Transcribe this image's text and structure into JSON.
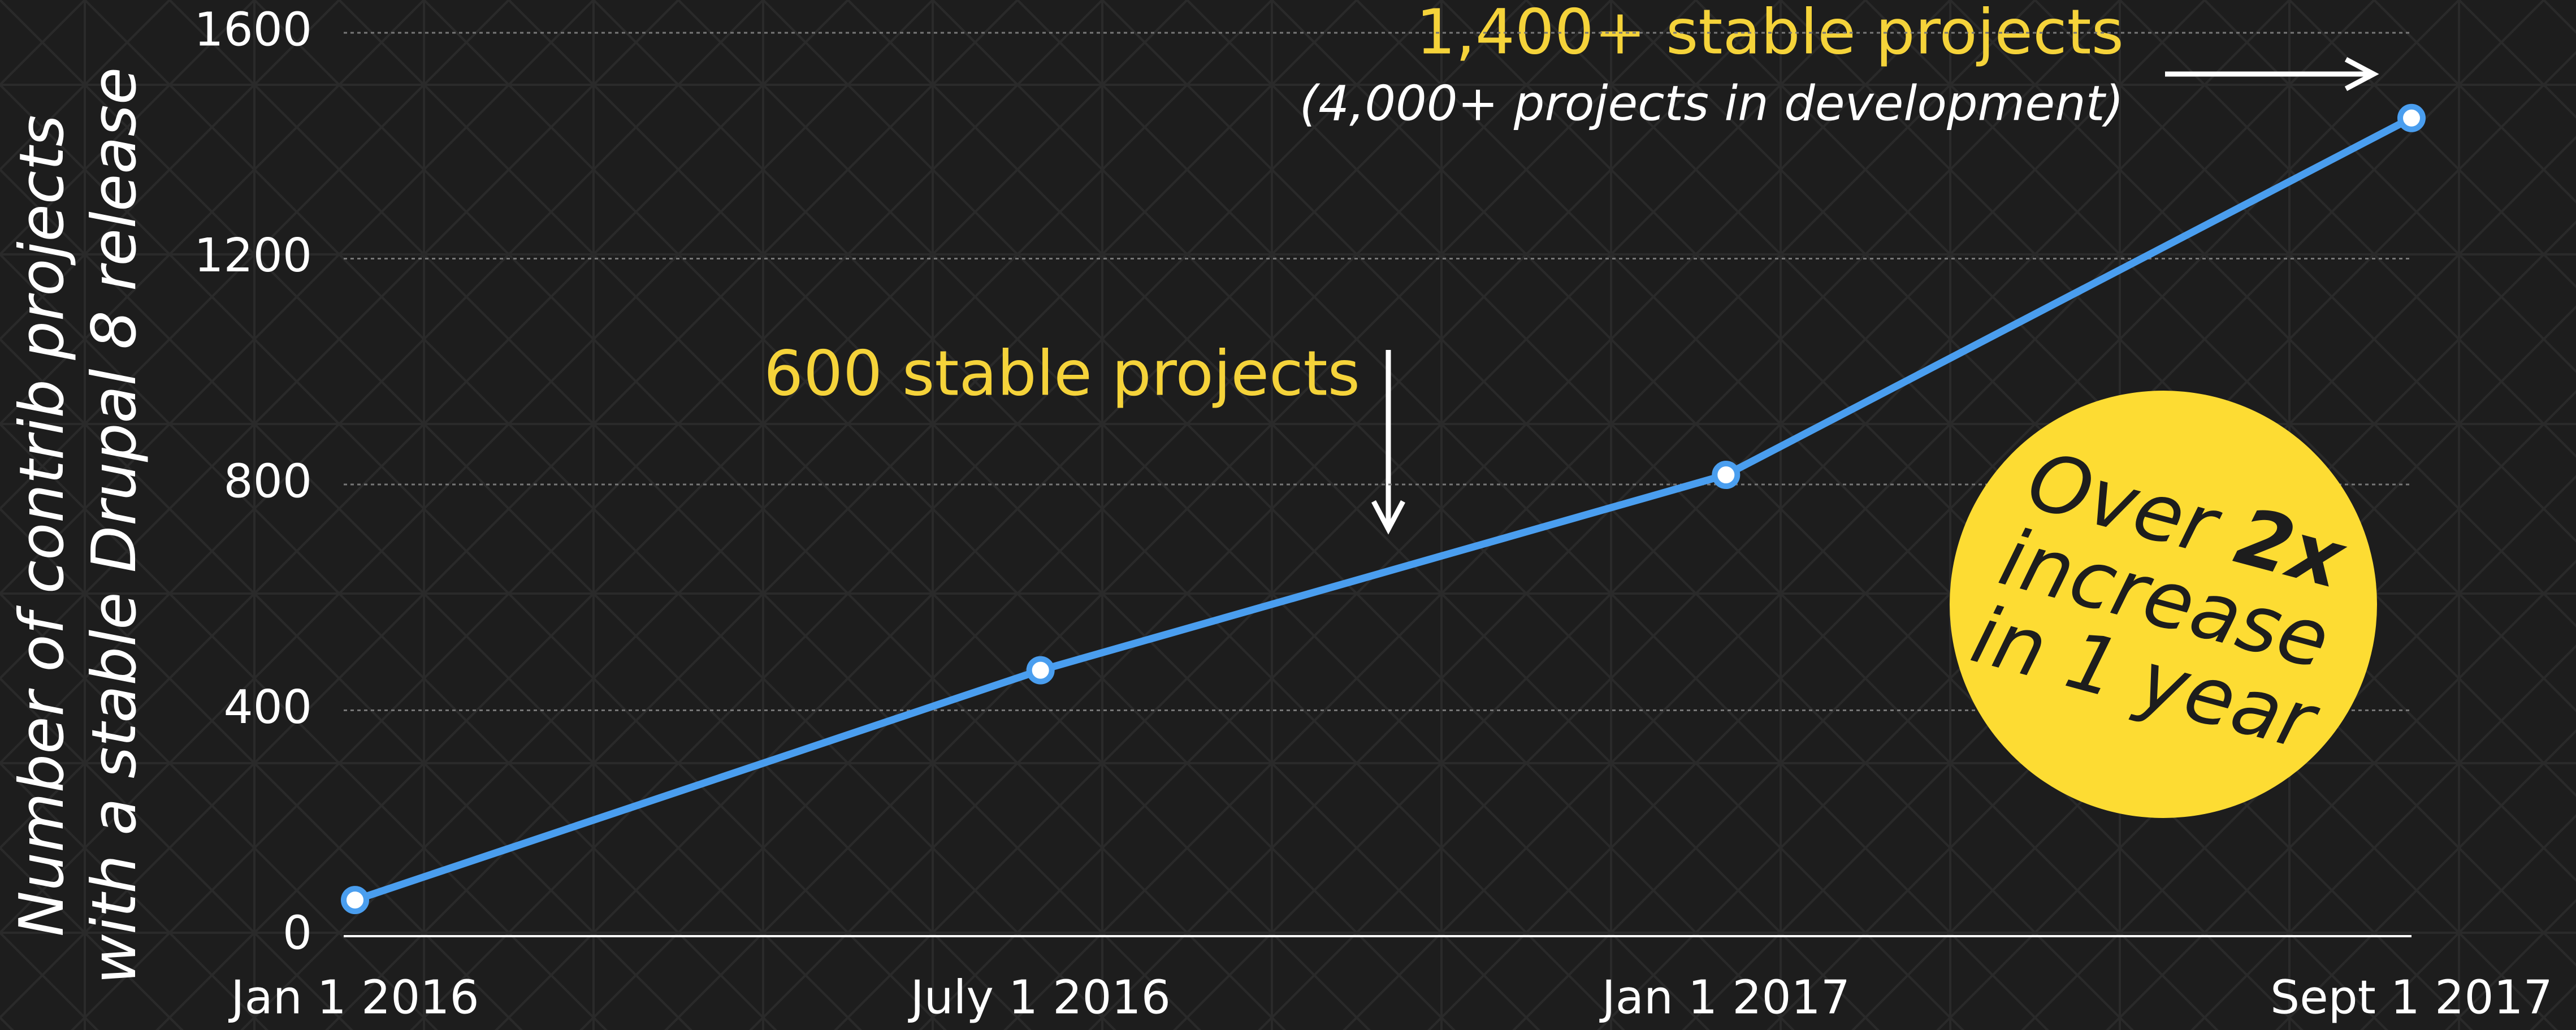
{
  "chart_data": {
    "type": "line",
    "ylabel": [
      "Number of contrib projects",
      "with a stable Drupal 8 release"
    ],
    "categories": [
      "Jan 1 2016",
      "July 1 2016",
      "Jan 1 2017",
      "Sept 1 2017"
    ],
    "series": [
      {
        "color": "#4a9eef",
        "values": [
          64,
          471,
          817,
          1449
        ]
      }
    ],
    "ylim": [
      0,
      1600
    ],
    "yticks": [
      0,
      400,
      800,
      1200,
      1600
    ],
    "grid": true,
    "annotations": [
      "1,400+ stable projects",
      "(4,000+ projects in development)",
      "600 stable projects"
    ],
    "badge": [
      "Over",
      "2x",
      "increase",
      "in 1 year"
    ]
  }
}
